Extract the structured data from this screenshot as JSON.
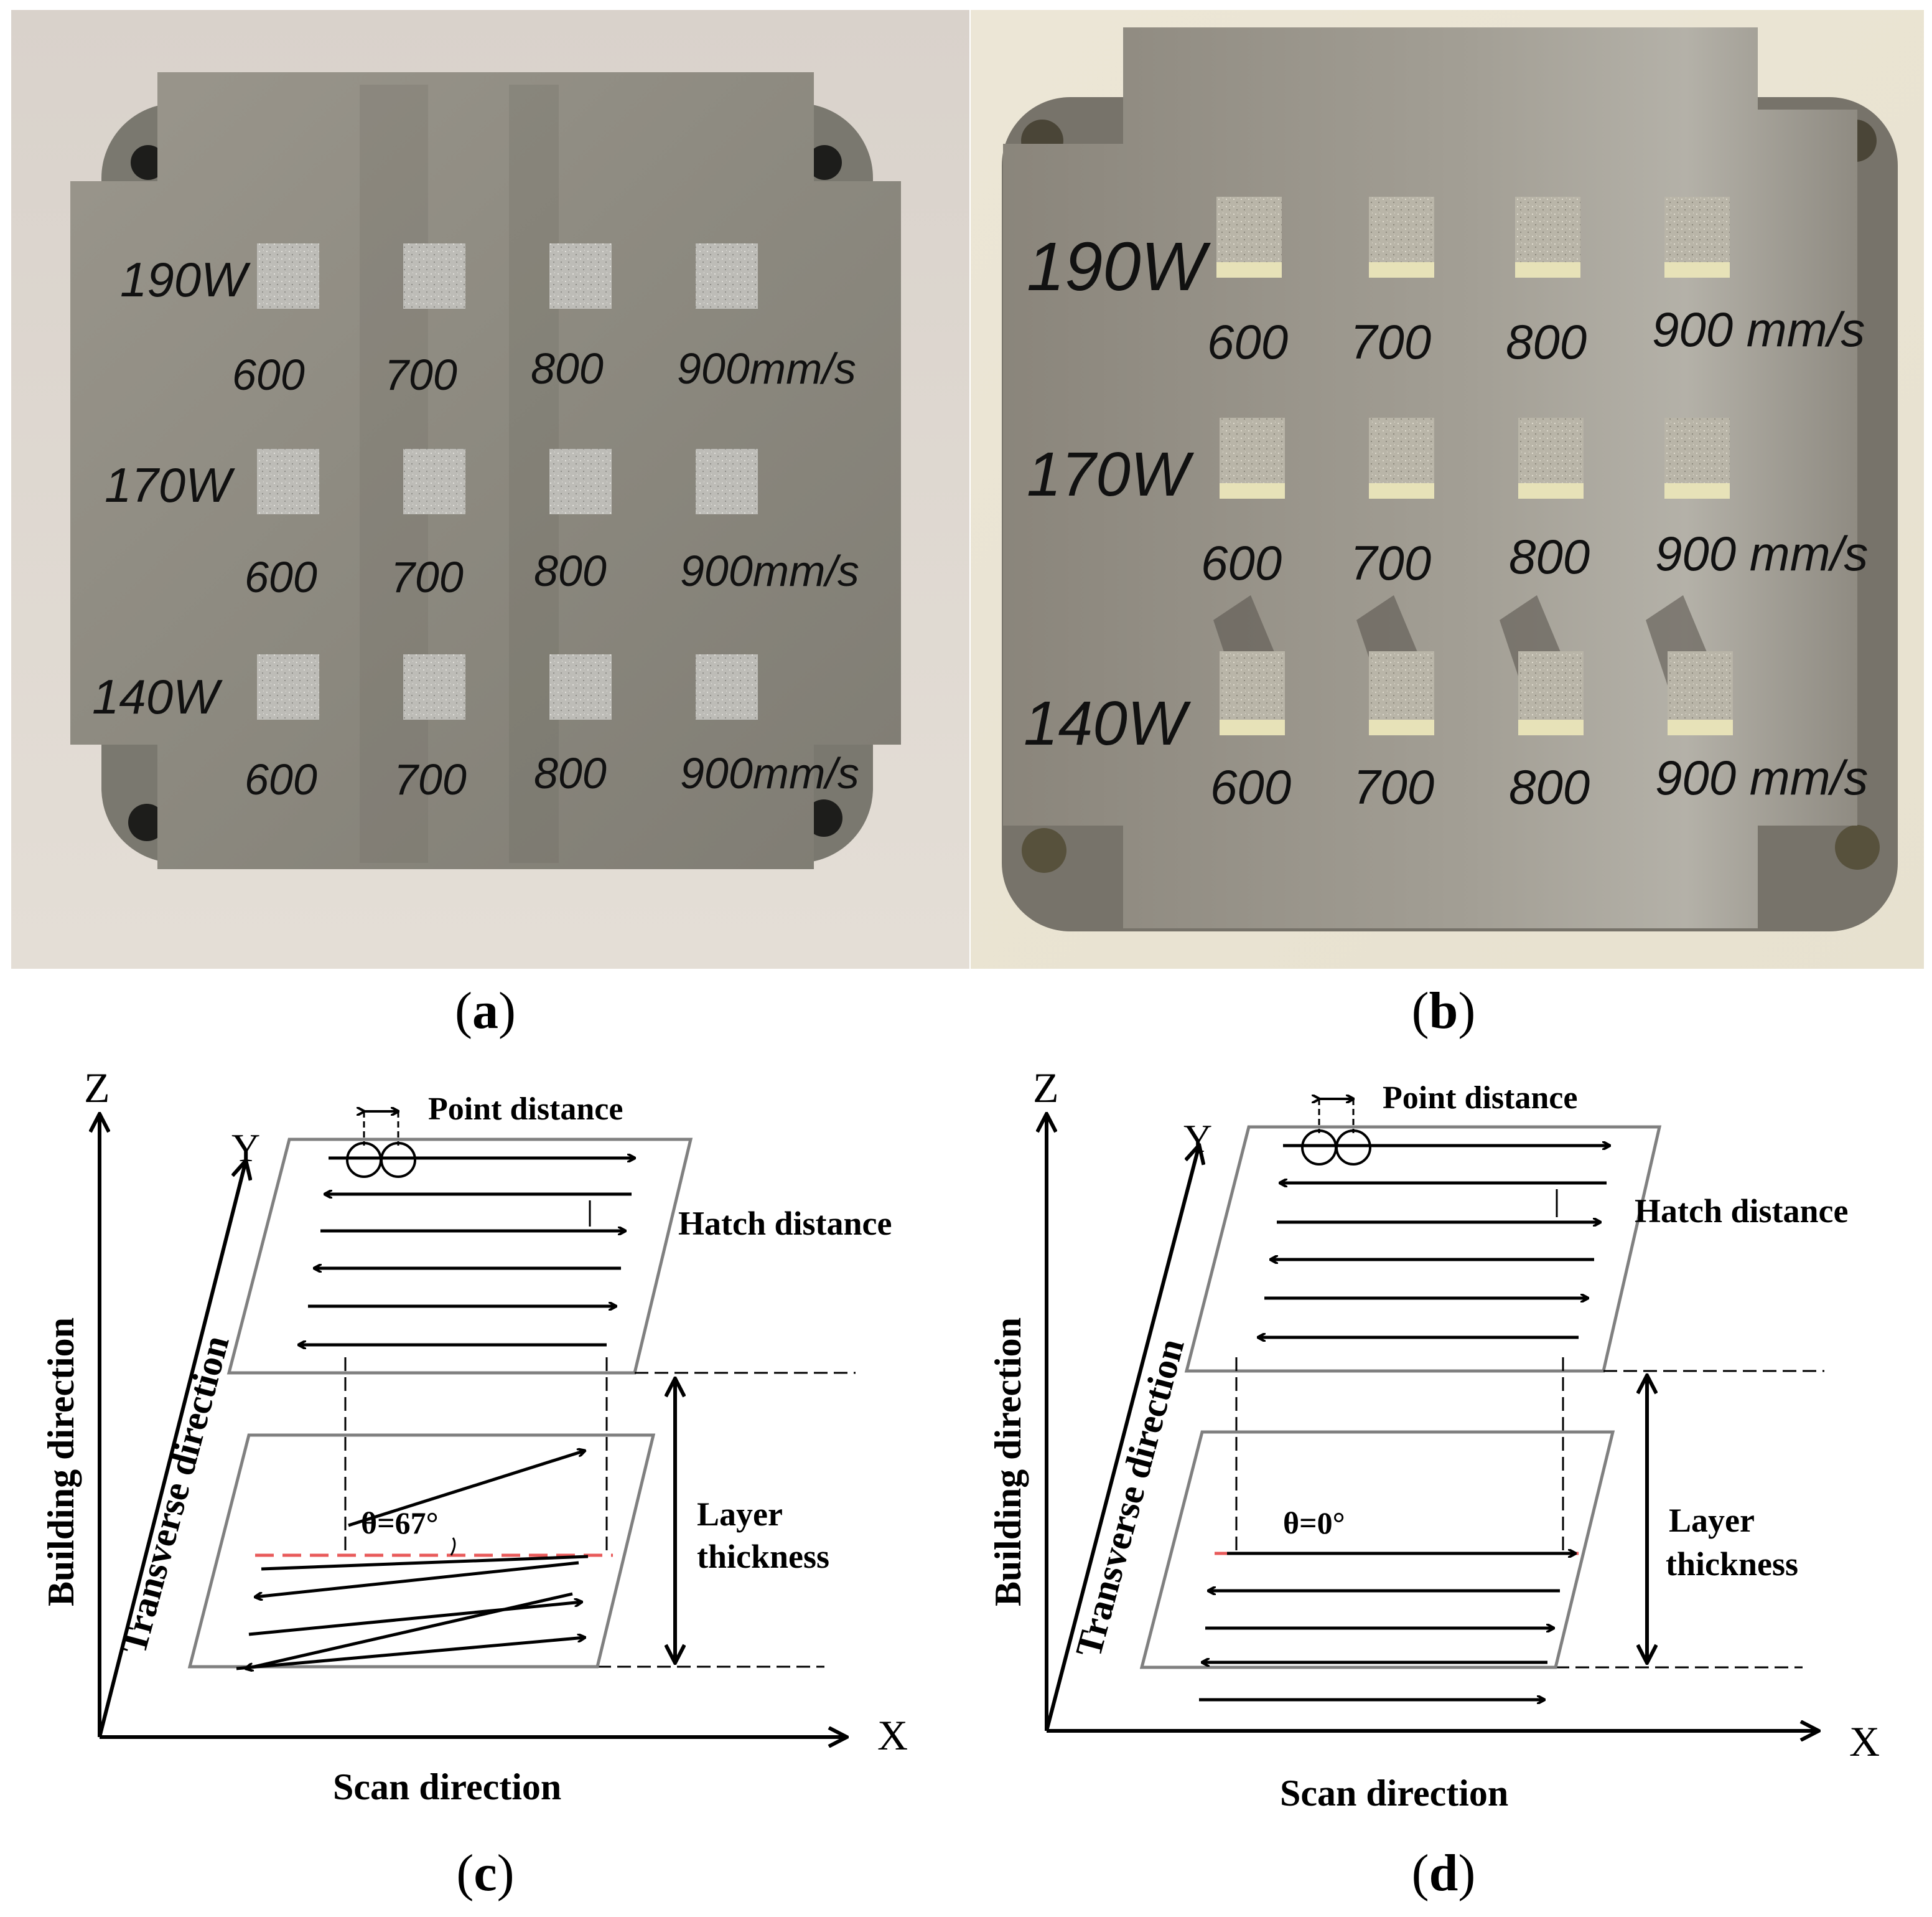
{
  "panels": {
    "a": {
      "paren_open": "(",
      "letter": "a",
      "paren_close": ")"
    },
    "b": {
      "paren_open": "(",
      "letter": "b",
      "paren_close": ")"
    },
    "c": {
      "paren_open": "(",
      "letter": "c",
      "paren_close": ")"
    },
    "d": {
      "paren_open": "(",
      "letter": "d",
      "paren_close": ")"
    }
  },
  "photo_a": {
    "rows": [
      {
        "power": "190W",
        "speeds": [
          "600",
          "700",
          "800",
          "900mm/s"
        ]
      },
      {
        "power": "170W",
        "speeds": [
          "600",
          "700",
          "800",
          "900mm/s"
        ]
      },
      {
        "power": "140W",
        "speeds": [
          "600",
          "700",
          "800",
          "900mm/s"
        ]
      }
    ]
  },
  "photo_b": {
    "rows": [
      {
        "power": "190W",
        "speeds": [
          "600",
          "700",
          "800",
          "900 mm/s"
        ]
      },
      {
        "power": "170W",
        "speeds": [
          "600",
          "700",
          "800",
          "900 mm/s"
        ]
      },
      {
        "power": "140W",
        "speeds": [
          "600",
          "700",
          "800",
          "900 mm/s"
        ]
      }
    ]
  },
  "diagram_c": {
    "z_axis": "Z",
    "x_axis": "X",
    "y_axis": "Y",
    "building_direction": "Building direction",
    "transverse_direction": "Transverse direction",
    "scan_direction": "Scan direction",
    "point_distance": "Point distance",
    "hatch_distance": "Hatch distance",
    "layer_thickness_1": "Layer",
    "layer_thickness_2": "thickness",
    "angle": "θ=67°"
  },
  "diagram_d": {
    "z_axis": "Z",
    "x_axis": "X",
    "y_axis": "Y",
    "building_direction": "Building direction",
    "transverse_direction": "Transverse direction",
    "scan_direction": "Scan direction",
    "point_distance": "Point distance",
    "hatch_distance": "Hatch distance",
    "layer_thickness_1": "Layer",
    "layer_thickness_2": "thickness",
    "angle": "θ=0°"
  },
  "colors": {
    "plate": "#8d8b83",
    "sample": "#b9b8b3",
    "marker": "#111111",
    "red_dash": "#e85a5a"
  }
}
